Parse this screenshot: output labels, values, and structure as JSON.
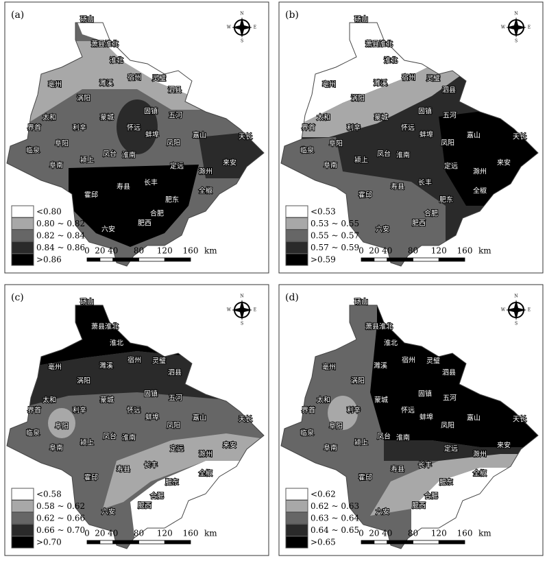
{
  "panels": [
    {
      "label": "(a)",
      "legend": [
        {
          "label": "<0.80",
          "color": "#ffffff"
        },
        {
          "label": "0.80 ~ 0.82",
          "color": "#a8a8a8"
        },
        {
          "label": "0.82 ~ 0.84",
          "color": "#666666"
        },
        {
          "label": "0.84 ~ 0.86",
          "color": "#2a2a2a"
        },
        {
          "label": ">0.86",
          "color": "#000000"
        }
      ]
    },
    {
      "label": "(b)",
      "legend": [
        {
          "label": "<0.53",
          "color": "#ffffff"
        },
        {
          "label": "0.53 ~ 0.55",
          "color": "#a8a8a8"
        },
        {
          "label": "0.55 ~ 0.57",
          "color": "#666666"
        },
        {
          "label": "0.57 ~ 0.59",
          "color": "#2a2a2a"
        },
        {
          "label": ">0.59",
          "color": "#000000"
        }
      ]
    },
    {
      "label": "(c)",
      "legend": [
        {
          "label": "<0.58",
          "color": "#ffffff"
        },
        {
          "label": "0.58 ~ 0.62",
          "color": "#a8a8a8"
        },
        {
          "label": "0.62 ~ 0.66",
          "color": "#666666"
        },
        {
          "label": "0.66 ~ 0.70",
          "color": "#2a2a2a"
        },
        {
          "label": ">0.70",
          "color": "#000000"
        }
      ]
    },
    {
      "label": "(d)",
      "legend": [
        {
          "label": "<0.62",
          "color": "#ffffff"
        },
        {
          "label": "0.62 ~ 0.63",
          "color": "#a8a8a8"
        },
        {
          "label": "0.63 ~ 0.64",
          "color": "#666666"
        },
        {
          "label": "0.64 ~ 0.65",
          "color": "#2a2a2a"
        },
        {
          "label": ">0.65",
          "color": "#000000"
        }
      ]
    }
  ],
  "county_names": [
    "砀山",
    "萧县淮北",
    "淮北",
    "亳州",
    "濉溪",
    "宿州",
    "灵璧",
    "泗县",
    "涡阳",
    "固镇",
    "五河",
    "太和",
    "蒙城",
    "界首",
    "利辛",
    "怀远",
    "蚌埠",
    "临泉",
    "阜阳",
    "凤阳",
    "嘉山",
    "天长",
    "凤台",
    "淮南",
    "颍上",
    "定远",
    "来安",
    "阜南",
    "滁州",
    "寿县",
    "长丰",
    "全椒",
    "霍邱",
    "肥东",
    "合肥",
    "肥西",
    "六安"
  ],
  "compass": {
    "north": "N",
    "south": "S",
    "west": "W",
    "east": "E"
  },
  "scale_bar": {
    "ticks": [
      0,
      20,
      40,
      80,
      120,
      160
    ],
    "unit": "km"
  }
}
